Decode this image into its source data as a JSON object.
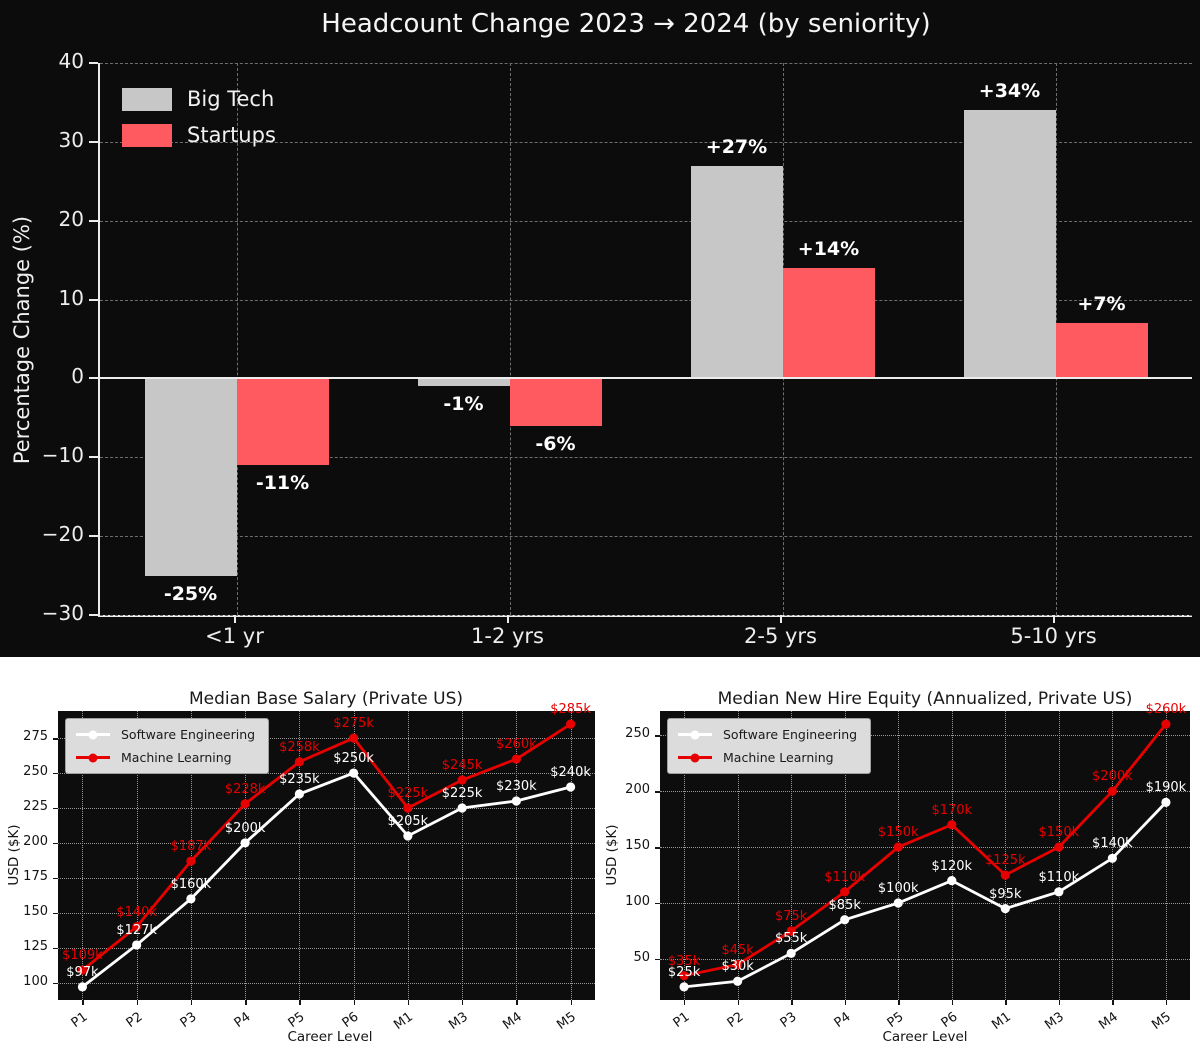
{
  "figure": {
    "top_background": "#0c0c0c",
    "bottom_background": "#ffffff",
    "plot_background": "#0d0d0d"
  },
  "chart_data": [
    {
      "id": "headcount",
      "type": "bar",
      "title": "Headcount Change 2023 → 2024 (by seniority)",
      "ylabel": "Percentage Change (%)",
      "categories": [
        "<1 yr",
        "1-2 yrs",
        "2-5 yrs",
        "5-10 yrs"
      ],
      "series": [
        {
          "name": "Big Tech",
          "color": "#c7c7c7",
          "values": [
            -25,
            -1,
            27,
            34
          ]
        },
        {
          "name": "Startups",
          "color": "#ff5a5f",
          "values": [
            -11,
            -6,
            14,
            7
          ]
        }
      ],
      "bar_labels": [
        [
          "-25%",
          "-1%",
          "+27%",
          "+34%"
        ],
        [
          "-11%",
          "-6%",
          "+14%",
          "+7%"
        ]
      ],
      "ylim": [
        -30,
        40
      ],
      "yticks": [
        40,
        30,
        20,
        10,
        0,
        -10,
        -20,
        -30
      ],
      "grid": "dashed",
      "legend_position": "top-left"
    },
    {
      "id": "salary",
      "type": "line",
      "title": "Median Base Salary (Private US)",
      "xlabel": "Career Level",
      "ylabel": "USD ($K)",
      "categories": [
        "P1",
        "P2",
        "P3",
        "P4",
        "P5",
        "P6",
        "M1",
        "M3",
        "M4",
        "M5"
      ],
      "series": [
        {
          "name": "Software Engineering",
          "color": "#ffffff",
          "values": [
            97,
            127,
            160,
            200,
            235,
            250,
            205,
            225,
            230,
            240
          ],
          "labels": [
            "$97k",
            "$127k",
            "$160k",
            "$200k",
            "$235k",
            "$250k",
            "$205k",
            "$225k",
            "$230k",
            "$240k"
          ]
        },
        {
          "name": "Machine Learning",
          "color": "#e60000",
          "values": [
            109,
            140,
            187,
            228,
            258,
            275,
            225,
            245,
            260,
            285
          ],
          "labels": [
            "$109k",
            "$140k",
            "$187k",
            "$228k",
            "$258k",
            "$275k",
            "$225k",
            "$245k",
            "$260k",
            "$285k"
          ]
        }
      ],
      "ylim": [
        87.6,
        294.4
      ],
      "yticks": [
        275,
        250,
        225,
        200,
        175,
        150,
        125,
        100
      ],
      "grid": "dotted",
      "legend_position": "top-left"
    },
    {
      "id": "equity",
      "type": "line",
      "title": "Median New Hire Equity (Annualized, Private US)",
      "xlabel": "Career Level",
      "ylabel": "USD ($K)",
      "categories": [
        "P1",
        "P2",
        "P3",
        "P4",
        "P5",
        "P6",
        "M1",
        "M3",
        "M4",
        "M5"
      ],
      "series": [
        {
          "name": "Software Engineering",
          "color": "#ffffff",
          "values": [
            25,
            30,
            55,
            85,
            100,
            120,
            95,
            110,
            140,
            190
          ],
          "labels": [
            "$25k",
            "$30k",
            "$55k",
            "$85k",
            "$100k",
            "$120k",
            "$95k",
            "$110k",
            "$140k",
            "$190k"
          ]
        },
        {
          "name": "Machine Learning",
          "color": "#e60000",
          "values": [
            35,
            45,
            75,
            110,
            150,
            170,
            125,
            150,
            200,
            260
          ],
          "labels": [
            "$35k",
            "$45k",
            "$75k",
            "$110k",
            "$150k",
            "$170k",
            "$125k",
            "$150k",
            "$200k",
            "$260k"
          ]
        }
      ],
      "ylim": [
        13.25,
        271.75
      ],
      "yticks": [
        250,
        200,
        150,
        100,
        50
      ],
      "grid": "dotted",
      "legend_position": "top-left"
    }
  ]
}
